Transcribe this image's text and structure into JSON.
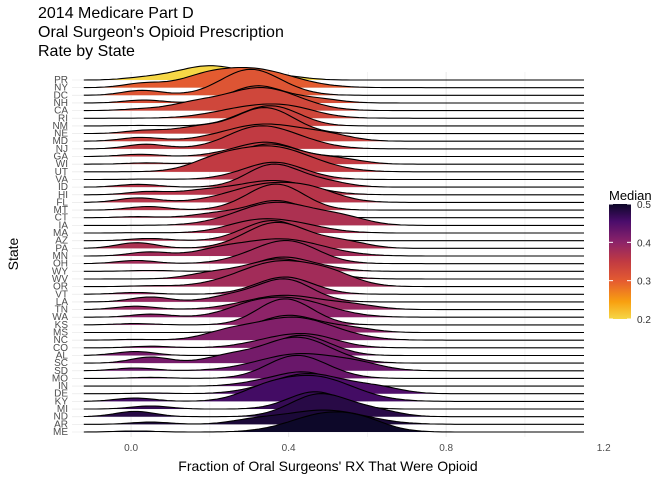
{
  "chart_data": {
    "type": "ridgeline",
    "title_lines": [
      "2014 Medicare Part D",
      "Oral Surgeon's Opioid Prescription",
      "Rate by State"
    ],
    "xlabel": "Fraction of Oral Surgeons' RX That Were Opioid",
    "ylabel": "State",
    "xlim": [
      -0.15,
      1.15
    ],
    "x_ticks": [
      0.0,
      0.4,
      0.8,
      1.2
    ],
    "x_tick_labels": [
      "0.0",
      "0.4",
      "0.8",
      "1.2"
    ],
    "grid": true,
    "legend": {
      "title": "Median",
      "position": "right",
      "range": [
        0.2,
        0.5
      ],
      "ticks": [
        0.2,
        0.3,
        0.4,
        0.5
      ],
      "tick_labels": [
        "0.2",
        "0.3",
        "0.4",
        "0.5"
      ],
      "colormap": "inferno"
    },
    "states": [
      "PR",
      "NY",
      "DC",
      "NH",
      "CA",
      "RI",
      "NM",
      "NE",
      "MD",
      "NJ",
      "GA",
      "WI",
      "UT",
      "VA",
      "ID",
      "HI",
      "FL",
      "MT",
      "CT",
      "IA",
      "MA",
      "AZ",
      "PA",
      "MN",
      "OH",
      "WY",
      "WV",
      "OR",
      "VT",
      "LA",
      "TN",
      "WA",
      "KS",
      "MS",
      "NC",
      "CO",
      "AL",
      "SC",
      "SD",
      "MO",
      "IN",
      "DE",
      "KY",
      "MI",
      "ND",
      "AR",
      "ME"
    ],
    "medians": [
      0.2,
      0.3,
      0.31,
      0.32,
      0.33,
      0.33,
      0.34,
      0.34,
      0.34,
      0.35,
      0.35,
      0.35,
      0.35,
      0.36,
      0.36,
      0.36,
      0.36,
      0.36,
      0.37,
      0.37,
      0.37,
      0.37,
      0.37,
      0.38,
      0.38,
      0.38,
      0.38,
      0.38,
      0.39,
      0.39,
      0.39,
      0.4,
      0.4,
      0.4,
      0.41,
      0.41,
      0.42,
      0.42,
      0.43,
      0.43,
      0.44,
      0.45,
      0.46,
      0.47,
      0.48,
      0.49,
      0.5
    ]
  },
  "colors": {
    "ridge_outline": "#000000",
    "grid": "#ebebeb",
    "background": "#ffffff"
  }
}
